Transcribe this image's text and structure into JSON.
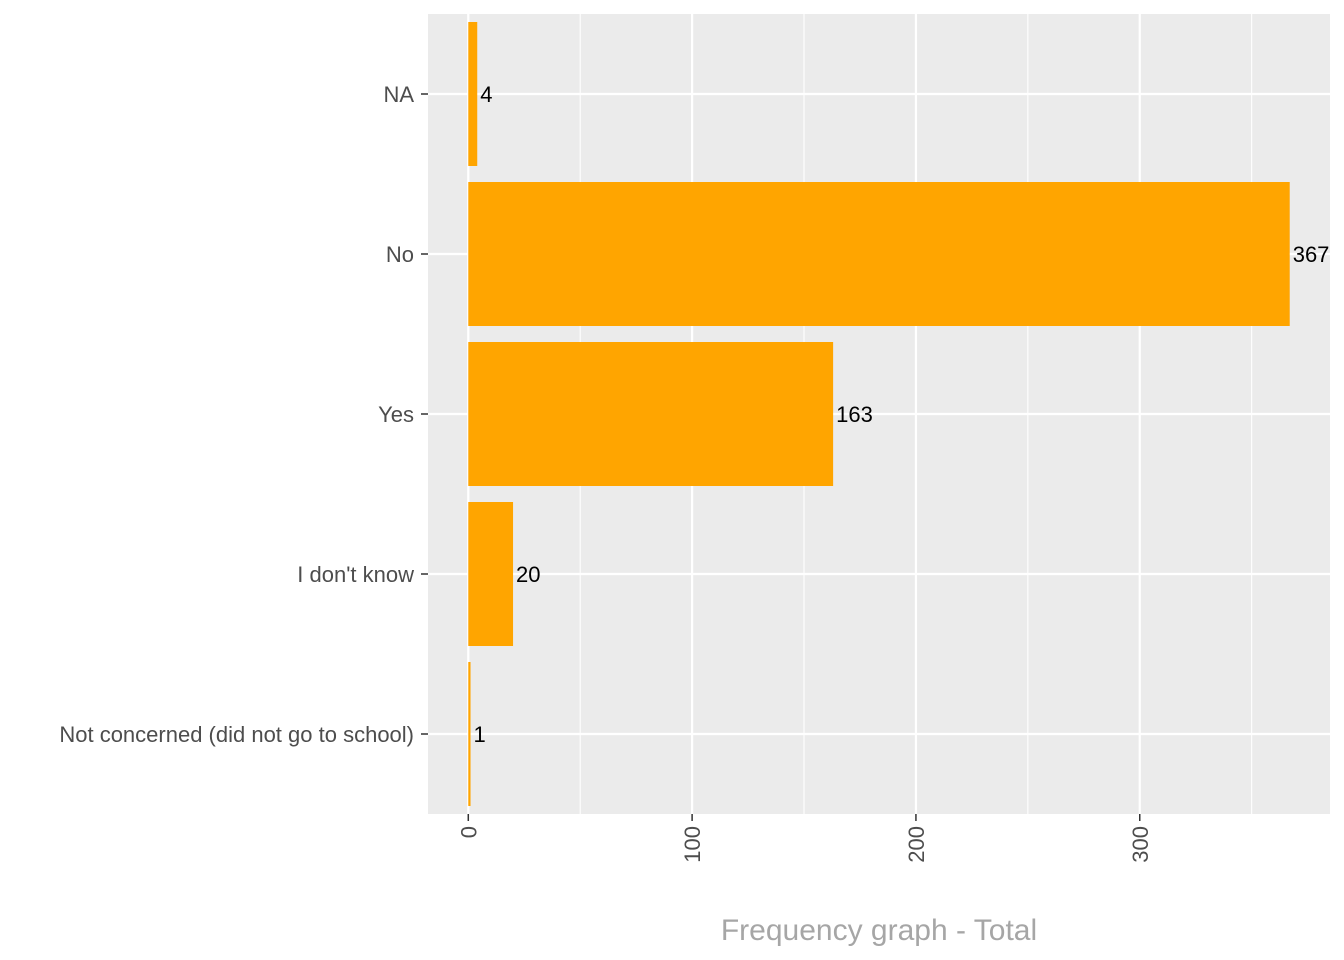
{
  "chart_data": {
    "type": "bar",
    "orientation": "horizontal",
    "categories": [
      "NA",
      "No",
      "Yes",
      "I don't know",
      "Not concerned (did not go to school)"
    ],
    "values": [
      4,
      367,
      163,
      20,
      1
    ],
    "data_labels": [
      "4",
      "367",
      "163",
      "20",
      "1"
    ],
    "title": "",
    "xlabel": "Frequency graph - Total",
    "ylabel": "",
    "xlim": [
      -18,
      385
    ],
    "x_ticks": [
      0,
      100,
      200,
      300
    ],
    "x_tick_labels": [
      "0",
      "100",
      "200",
      "300"
    ],
    "x_tick_rotation": "vertical",
    "grid": true,
    "legend": "none",
    "colors": {
      "bar": "#FFA500",
      "panel": "#EBEBEB",
      "grid": "#FFFFFF",
      "axis_text": "#4D4D4D",
      "axis_title": "#A6A6A6",
      "data_label": "#000000"
    }
  }
}
